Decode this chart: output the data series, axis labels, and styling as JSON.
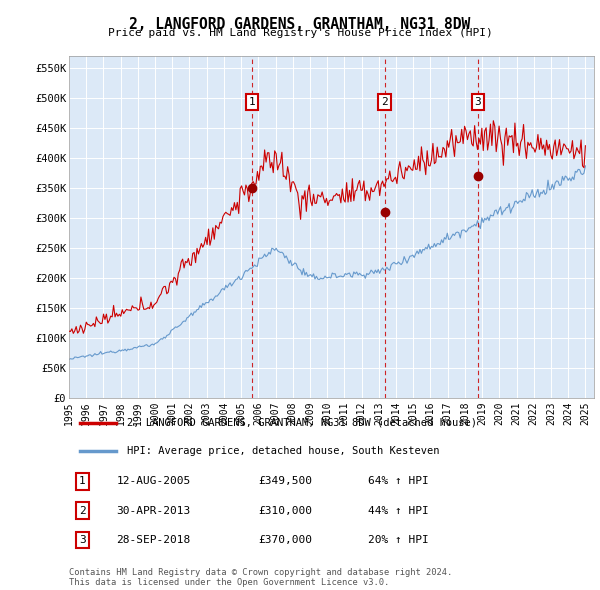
{
  "title": "2, LANGFORD GARDENS, GRANTHAM, NG31 8DW",
  "subtitle": "Price paid vs. HM Land Registry's House Price Index (HPI)",
  "background_color": "#ffffff",
  "plot_bg_color": "#dce9f7",
  "grid_color": "#c8d8e8",
  "ylim": [
    0,
    570000
  ],
  "yticks": [
    0,
    50000,
    100000,
    150000,
    200000,
    250000,
    300000,
    350000,
    400000,
    450000,
    500000,
    550000
  ],
  "ytick_labels": [
    "£0",
    "£50K",
    "£100K",
    "£150K",
    "£200K",
    "£250K",
    "£300K",
    "£350K",
    "£400K",
    "£450K",
    "£500K",
    "£550K"
  ],
  "legend_line1": "2, LANGFORD GARDENS, GRANTHAM, NG31 8DW (detached house)",
  "legend_line2": "HPI: Average price, detached house, South Kesteven",
  "transactions": [
    {
      "label": "1",
      "date": "12-AUG-2005",
      "price": "£349,500",
      "hpi": "64% ↑ HPI",
      "x_year": 2005.62
    },
    {
      "label": "2",
      "date": "30-APR-2013",
      "price": "£310,000",
      "hpi": "44% ↑ HPI",
      "x_year": 2013.33
    },
    {
      "label": "3",
      "date": "28-SEP-2018",
      "price": "£370,000",
      "hpi": "20% ↑ HPI",
      "x_year": 2018.75
    }
  ],
  "transaction_prices": [
    349500,
    310000,
    370000
  ],
  "footer": "Contains HM Land Registry data © Crown copyright and database right 2024.\nThis data is licensed under the Open Government Licence v3.0.",
  "red_line_color": "#cc0000",
  "blue_line_color": "#6699cc",
  "xlim_start": 1995,
  "xlim_end": 2025.5
}
